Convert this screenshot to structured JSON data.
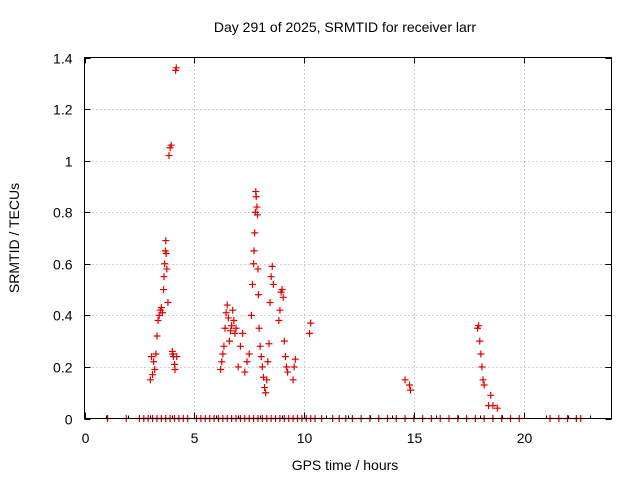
{
  "chart_data": {
    "type": "scatter",
    "title": "Day 291 of 2025, SRMTID for receiver larr",
    "xlabel": "GPS time / hours",
    "ylabel": "SRMTID / TECUs",
    "xlim": [
      0,
      24
    ],
    "ylim": [
      0,
      1.4
    ],
    "xticks": [
      0,
      5,
      10,
      15,
      20
    ],
    "yticks": [
      0,
      0.2,
      0.4,
      0.6,
      0.8,
      1,
      1.2,
      1.4
    ],
    "xtick_labels": [
      "0",
      "5",
      "10",
      "15",
      "20"
    ],
    "ytick_labels": [
      "0",
      "0.2",
      "0.4",
      "0.6",
      "0.8",
      "1",
      "1.2",
      "1.4"
    ],
    "grid": true,
    "marker": "+",
    "color": "#e00000",
    "series": [
      {
        "name": "SRMTID",
        "x": [
          1.05,
          1.9,
          2.5,
          2.7,
          2.9,
          3.1,
          3.3,
          3.5,
          3.7,
          3.9,
          4.1,
          4.3,
          4.5,
          4.7,
          5.1,
          5.3,
          5.5,
          5.7,
          5.9,
          6.1,
          6.3,
          6.5,
          6.7,
          6.9,
          7.1,
          7.3,
          7.5,
          7.7,
          7.9,
          8.1,
          8.3,
          8.5,
          8.7,
          8.9,
          9.1,
          9.3,
          9.5,
          9.7,
          9.9,
          10.1,
          10.3,
          10.5,
          10.8,
          11.3,
          11.6,
          11.9,
          12.2,
          12.6,
          13.0,
          13.4,
          13.8,
          14.2,
          14.6,
          15.0,
          15.4,
          15.8,
          16.2,
          16.6,
          17.0,
          17.4,
          17.8,
          18.2,
          18.6,
          19.0,
          19.4,
          19.8,
          21.2,
          21.6,
          22.0,
          22.4,
          22.6,
          3.0,
          3.1,
          3.05,
          3.15,
          3.2,
          3.25,
          3.3,
          3.35,
          3.4,
          3.45,
          3.5,
          3.55,
          3.6,
          3.62,
          3.65,
          3.68,
          3.7,
          3.72,
          3.75,
          3.8,
          3.85,
          3.9,
          3.95,
          4.0,
          4.02,
          4.05,
          4.1,
          4.12,
          4.15,
          4.18,
          4.2,
          6.2,
          6.25,
          6.3,
          6.35,
          6.4,
          6.45,
          6.5,
          6.55,
          6.6,
          6.65,
          6.7,
          6.75,
          6.8,
          6.85,
          6.9,
          7.0,
          7.1,
          7.2,
          7.3,
          7.4,
          7.5,
          7.6,
          7.65,
          7.7,
          7.72,
          7.75,
          7.78,
          7.8,
          7.82,
          7.85,
          7.88,
          7.9,
          7.92,
          7.95,
          8.0,
          8.05,
          8.1,
          8.15,
          8.2,
          8.25,
          8.3,
          8.35,
          8.4,
          8.45,
          8.5,
          8.55,
          8.6,
          8.85,
          8.9,
          8.95,
          9.0,
          9.05,
          9.1,
          9.15,
          9.2,
          9.25,
          9.5,
          9.55,
          9.6,
          10.25,
          10.3,
          14.6,
          14.8,
          14.85,
          17.9,
          17.95,
          18.0,
          18.05,
          18.1,
          18.15,
          18.2,
          18.4,
          18.5,
          18.6,
          18.8
        ],
        "y": [
          0,
          0,
          0,
          0,
          0,
          0,
          0,
          0,
          0,
          0,
          0,
          0,
          0,
          0,
          0,
          0,
          0,
          0,
          0,
          0,
          0,
          0,
          0,
          0,
          0,
          0,
          0,
          0,
          0,
          0,
          0,
          0,
          0,
          0,
          0,
          0,
          0,
          0,
          0,
          0,
          0,
          0,
          0,
          0,
          0,
          0,
          0,
          0,
          0,
          0,
          0,
          0,
          0,
          0,
          0,
          0,
          0,
          0,
          0,
          0,
          0,
          0,
          0,
          0,
          0,
          0,
          0,
          0,
          0,
          0,
          0,
          0.15,
          0.17,
          0.24,
          0.22,
          0.19,
          0.25,
          0.32,
          0.38,
          0.4,
          0.42,
          0.43,
          0.41,
          0.5,
          0.55,
          0.6,
          0.65,
          0.69,
          0.64,
          0.58,
          0.45,
          1.02,
          1.05,
          1.06,
          0.26,
          0.25,
          0.24,
          0.21,
          0.19,
          1.35,
          1.36,
          0.24,
          0.19,
          0.22,
          0.25,
          0.28,
          0.35,
          0.41,
          0.44,
          0.39,
          0.3,
          0.34,
          0.36,
          0.42,
          0.38,
          0.33,
          0.35,
          0.2,
          0.28,
          0.33,
          0.18,
          0.22,
          0.25,
          0.4,
          0.52,
          0.6,
          0.65,
          0.72,
          0.8,
          0.88,
          0.86,
          0.82,
          0.79,
          0.58,
          0.48,
          0.35,
          0.28,
          0.24,
          0.2,
          0.16,
          0.12,
          0.1,
          0.15,
          0.22,
          0.29,
          0.45,
          0.55,
          0.59,
          0.52,
          0.38,
          0.42,
          0.49,
          0.5,
          0.47,
          0.3,
          0.24,
          0.2,
          0.18,
          0.15,
          0.2,
          0.23,
          0.33,
          0.37,
          0.15,
          0.13,
          0.11,
          0.35,
          0.36,
          0.3,
          0.25,
          0.2,
          0.15,
          0.13,
          0.05,
          0.09,
          0.05,
          0.04
        ]
      }
    ]
  }
}
